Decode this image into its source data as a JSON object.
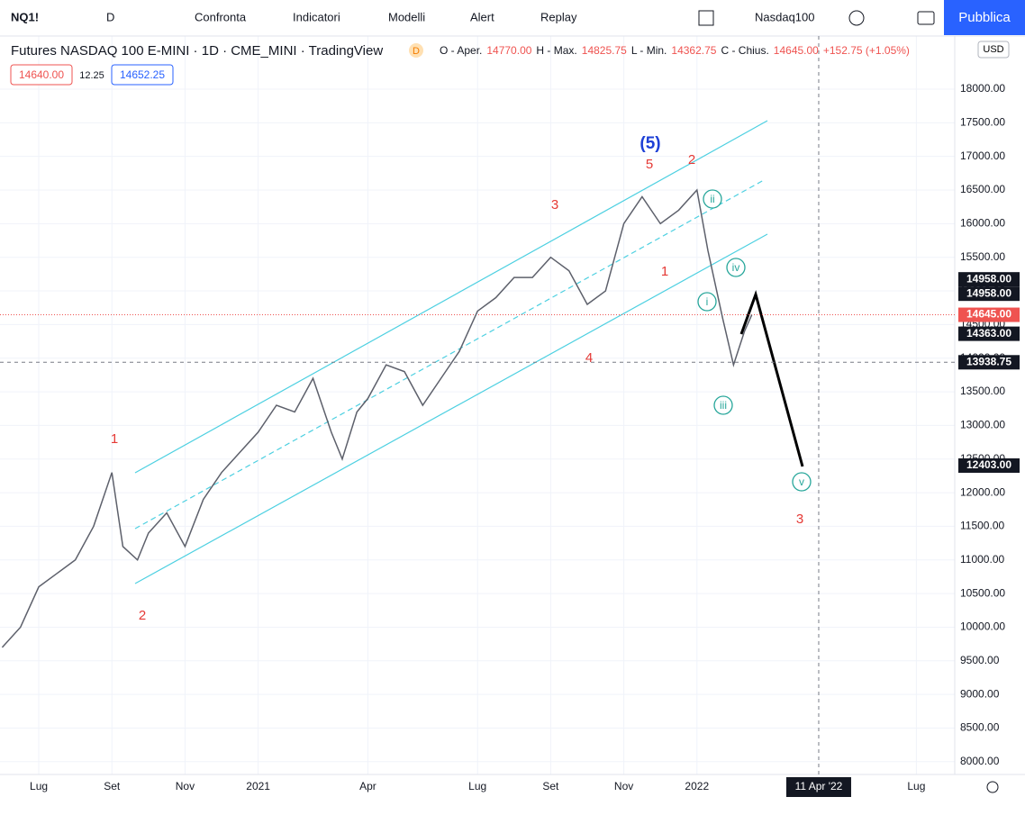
{
  "toolbar": {
    "symbol": "NQ1!",
    "interval": "D",
    "items": [
      "Confronta",
      "Indicatori",
      "Modelli",
      "Alert",
      "Replay"
    ],
    "watch": "Nasdaq100",
    "publish": "Pubblica"
  },
  "header": {
    "title": "Futures NASDAQ 100 E-MINI · 1D · CME_MINI · TradingView",
    "badge": "D",
    "ohlc": [
      "O - Aper.",
      "14770.00",
      "H - Max.",
      "14825.75",
      "L - Min.",
      "14362.75",
      "C - Chius.",
      "14645.00",
      "+152.75 (+1.05%)"
    ],
    "bid": "14640.00",
    "spread": "12.25",
    "ask": "14652.25",
    "currency": "USD"
  },
  "chart_data": {
    "type": "line",
    "color": "#5d606b",
    "x": [
      5.0,
      5.5,
      6.0,
      6.5,
      7.0,
      7.5,
      8.0,
      8.3,
      8.7,
      9.0,
      9.5,
      10.0,
      10.5,
      11.0,
      11.5,
      12.0,
      12.5,
      13.0,
      13.5,
      14.0,
      14.3,
      14.7,
      15.0,
      15.5,
      16.0,
      16.5,
      17.0,
      17.5,
      18.0,
      18.5,
      19.0,
      19.5,
      20.0,
      20.5,
      21.0,
      21.5,
      22.0,
      22.5,
      23.0,
      23.5,
      24.0,
      24.3,
      24.7,
      25.0,
      25.3,
      25.5
    ],
    "values": [
      9700,
      10000,
      10600,
      10800,
      11000,
      11500,
      12300,
      11200,
      11000,
      11400,
      11700,
      11200,
      11900,
      12300,
      12600,
      12900,
      13300,
      13200,
      13700,
      12900,
      12500,
      13200,
      13400,
      13900,
      13800,
      13300,
      13700,
      14100,
      14700,
      14900,
      15200,
      15200,
      15500,
      15300,
      14800,
      15000,
      16000,
      16400,
      16000,
      16200,
      16500,
      15600,
      14600,
      13900,
      14400,
      14645
    ],
    "xlim": [
      4.94,
      31.05
    ],
    "ylim": [
      7810,
      18790
    ],
    "xticks": [
      {
        "value": 6,
        "label": "Lug"
      },
      {
        "value": 8,
        "label": "Set"
      },
      {
        "value": 10,
        "label": "Nov"
      },
      {
        "value": 12,
        "label": "2021"
      },
      {
        "value": 15,
        "label": "Apr"
      },
      {
        "value": 18,
        "label": "Lug"
      },
      {
        "value": 20,
        "label": "Set"
      },
      {
        "value": 22,
        "label": "Nov"
      },
      {
        "value": 24,
        "label": "2022"
      },
      {
        "value": 27.33,
        "label": "11 Apr '22"
      },
      {
        "value": 30,
        "label": "Lug"
      }
    ],
    "yticks": [
      {
        "value": 8000,
        "label": "8000.00"
      },
      {
        "value": 8500,
        "label": "8500.00"
      },
      {
        "value": 9000,
        "label": "9000.00"
      },
      {
        "value": 9500,
        "label": "9500.00"
      },
      {
        "value": 10000,
        "label": "10000.00"
      },
      {
        "value": 10500,
        "label": "10500.00"
      },
      {
        "value": 11000,
        "label": "11000.00"
      },
      {
        "value": 11500,
        "label": "11500.00"
      },
      {
        "value": 12000,
        "label": "12000.00"
      },
      {
        "value": 12500,
        "label": "12500.00"
      },
      {
        "value": 13000,
        "label": "13000.00"
      },
      {
        "value": 13500,
        "label": "13500.00"
      },
      {
        "value": 14000,
        "label": "14000.00"
      },
      {
        "value": 14500,
        "label": "14500.00"
      },
      {
        "value": 15000,
        "label": "15000.00"
      },
      {
        "value": 15500,
        "label": "15500.00"
      },
      {
        "value": 16000,
        "label": "16000.00"
      },
      {
        "value": 16500,
        "label": "16500.00"
      },
      {
        "value": 17000,
        "label": "17000.00"
      },
      {
        "value": 17500,
        "label": "17500.00"
      },
      {
        "value": 18000,
        "label": "18000.00"
      }
    ],
    "price_labels": [
      {
        "value": 14958,
        "label": "14958.00"
      },
      {
        "value": 14958,
        "label": "14958.00"
      },
      {
        "value": 14645,
        "label": "14645.00"
      },
      {
        "value": 14363,
        "label": "14363.00"
      },
      {
        "value": 13938.75,
        "label": "13938.75"
      },
      {
        "value": 12403,
        "label": "12403.00"
      }
    ],
    "wave_labels": [
      "(5)",
      "5",
      "2",
      "3",
      "1",
      "4",
      "1",
      "2",
      "3"
    ],
    "circle_labels": [
      "ii",
      "iv",
      "i",
      "iii",
      "v"
    ]
  }
}
